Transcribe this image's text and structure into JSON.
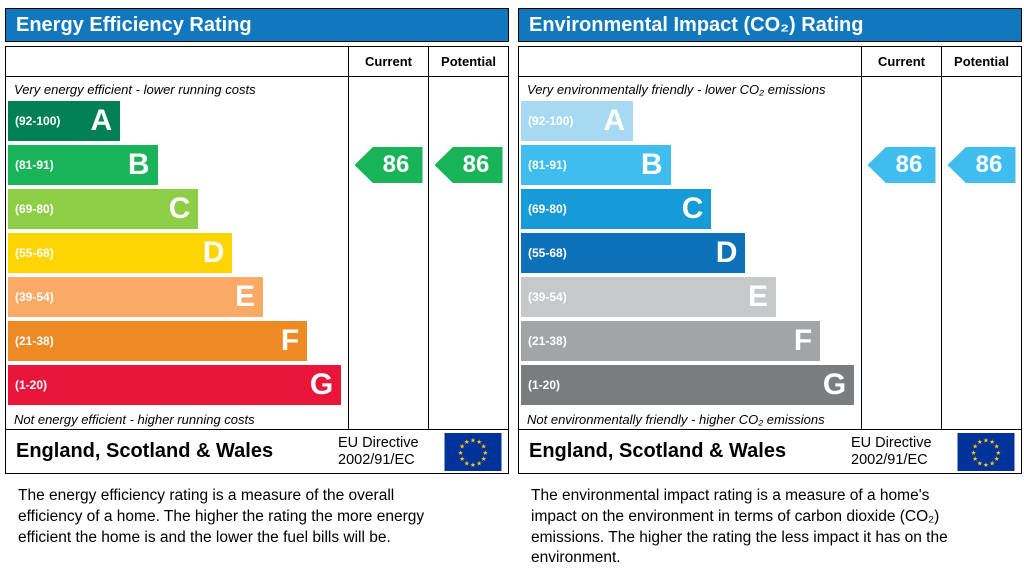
{
  "panels": [
    {
      "title": "Energy Efficiency Rating",
      "col_current": "Current",
      "col_potential": "Potential",
      "top_note": "Very energy efficient - lower running costs",
      "bottom_note": "Not energy efficient - higher running costs",
      "bands": [
        {
          "range": "(92-100)",
          "letter": "A",
          "color": "#008054",
          "width_pct": 33
        },
        {
          "range": "(81-91)",
          "letter": "B",
          "color": "#19b459",
          "width_pct": 44
        },
        {
          "range": "(69-80)",
          "letter": "C",
          "color": "#8dce46",
          "width_pct": 56
        },
        {
          "range": "(55-68)",
          "letter": "D",
          "color": "#ffd500",
          "width_pct": 66
        },
        {
          "range": "(39-54)",
          "letter": "E",
          "color": "#fbaa65",
          "width_pct": 75
        },
        {
          "range": "(21-38)",
          "letter": "F",
          "color": "#ee8a23",
          "width_pct": 88
        },
        {
          "range": "(1-20)",
          "letter": "G",
          "color": "#e9153b",
          "width_pct": 98
        }
      ],
      "current_value": "86",
      "potential_value": "86",
      "current_band_index": 1,
      "potential_band_index": 1,
      "arrow_color": "#19b459",
      "footer_region": "England, Scotland & Wales",
      "footer_directive_line1": "EU Directive",
      "footer_directive_line2": "2002/91/EC",
      "description": "The energy efficiency rating is a measure of the overall efficiency of a home. The higher the rating the more energy efficient the home is and the lower the fuel bills will be."
    },
    {
      "title": "Environmental Impact (CO₂) Rating",
      "col_current": "Current",
      "col_potential": "Potential",
      "top_note": "Very environmentally friendly - lower CO₂ emissions",
      "bottom_note": "Not environmentally friendly - higher CO₂ emissions",
      "bands": [
        {
          "range": "(92-100)",
          "letter": "A",
          "color": "#a7daf2",
          "width_pct": 33
        },
        {
          "range": "(81-91)",
          "letter": "B",
          "color": "#3fbdef",
          "width_pct": 44
        },
        {
          "range": "(69-80)",
          "letter": "C",
          "color": "#169bd7",
          "width_pct": 56
        },
        {
          "range": "(55-68)",
          "letter": "D",
          "color": "#0d71ba",
          "width_pct": 66
        },
        {
          "range": "(39-54)",
          "letter": "E",
          "color": "#c7c8ca",
          "width_pct": 75
        },
        {
          "range": "(21-38)",
          "letter": "F",
          "color": "#a3a4a6",
          "width_pct": 88
        },
        {
          "range": "(1-20)",
          "letter": "G",
          "color": "#7b7c7e",
          "width_pct": 98
        }
      ],
      "current_value": "86",
      "potential_value": "86",
      "current_band_index": 1,
      "potential_band_index": 1,
      "arrow_color": "#3fbdef",
      "footer_region": "England, Scotland & Wales",
      "footer_directive_line1": "EU Directive",
      "footer_directive_line2": "2002/91/EC",
      "description": "The environmental impact rating is a measure of a home's impact on the environment in terms of carbon dioxide (CO₂) emissions. The higher the rating the less impact it has on the environment."
    }
  ],
  "colors": {
    "header_blue": "#1278be",
    "eu_flag_blue": "#003399",
    "eu_flag_star": "#ffcc00"
  },
  "chart_data": [
    {
      "type": "bar",
      "title": "Energy Efficiency Rating",
      "categories": [
        "A (92-100)",
        "B (81-91)",
        "C (69-80)",
        "D (55-68)",
        "E (39-54)",
        "F (21-38)",
        "G (1-20)"
      ],
      "band_width_pct": [
        33,
        44,
        56,
        66,
        75,
        88,
        98
      ],
      "series": [
        {
          "name": "Current",
          "value": 86,
          "band": "B"
        },
        {
          "name": "Potential",
          "value": 86,
          "band": "B"
        }
      ],
      "top_note": "Very energy efficient - lower running costs",
      "bottom_note": "Not energy efficient - higher running costs",
      "region": "England, Scotland & Wales",
      "directive": "EU Directive 2002/91/EC"
    },
    {
      "type": "bar",
      "title": "Environmental Impact (CO₂) Rating",
      "categories": [
        "A (92-100)",
        "B (81-91)",
        "C (69-80)",
        "D (55-68)",
        "E (39-54)",
        "F (21-38)",
        "G (1-20)"
      ],
      "band_width_pct": [
        33,
        44,
        56,
        66,
        75,
        88,
        98
      ],
      "series": [
        {
          "name": "Current",
          "value": 86,
          "band": "B"
        },
        {
          "name": "Potential",
          "value": 86,
          "band": "B"
        }
      ],
      "top_note": "Very environmentally friendly - lower CO₂ emissions",
      "bottom_note": "Not environmentally friendly - higher CO₂ emissions",
      "region": "England, Scotland & Wales",
      "directive": "EU Directive 2002/91/EC"
    }
  ]
}
